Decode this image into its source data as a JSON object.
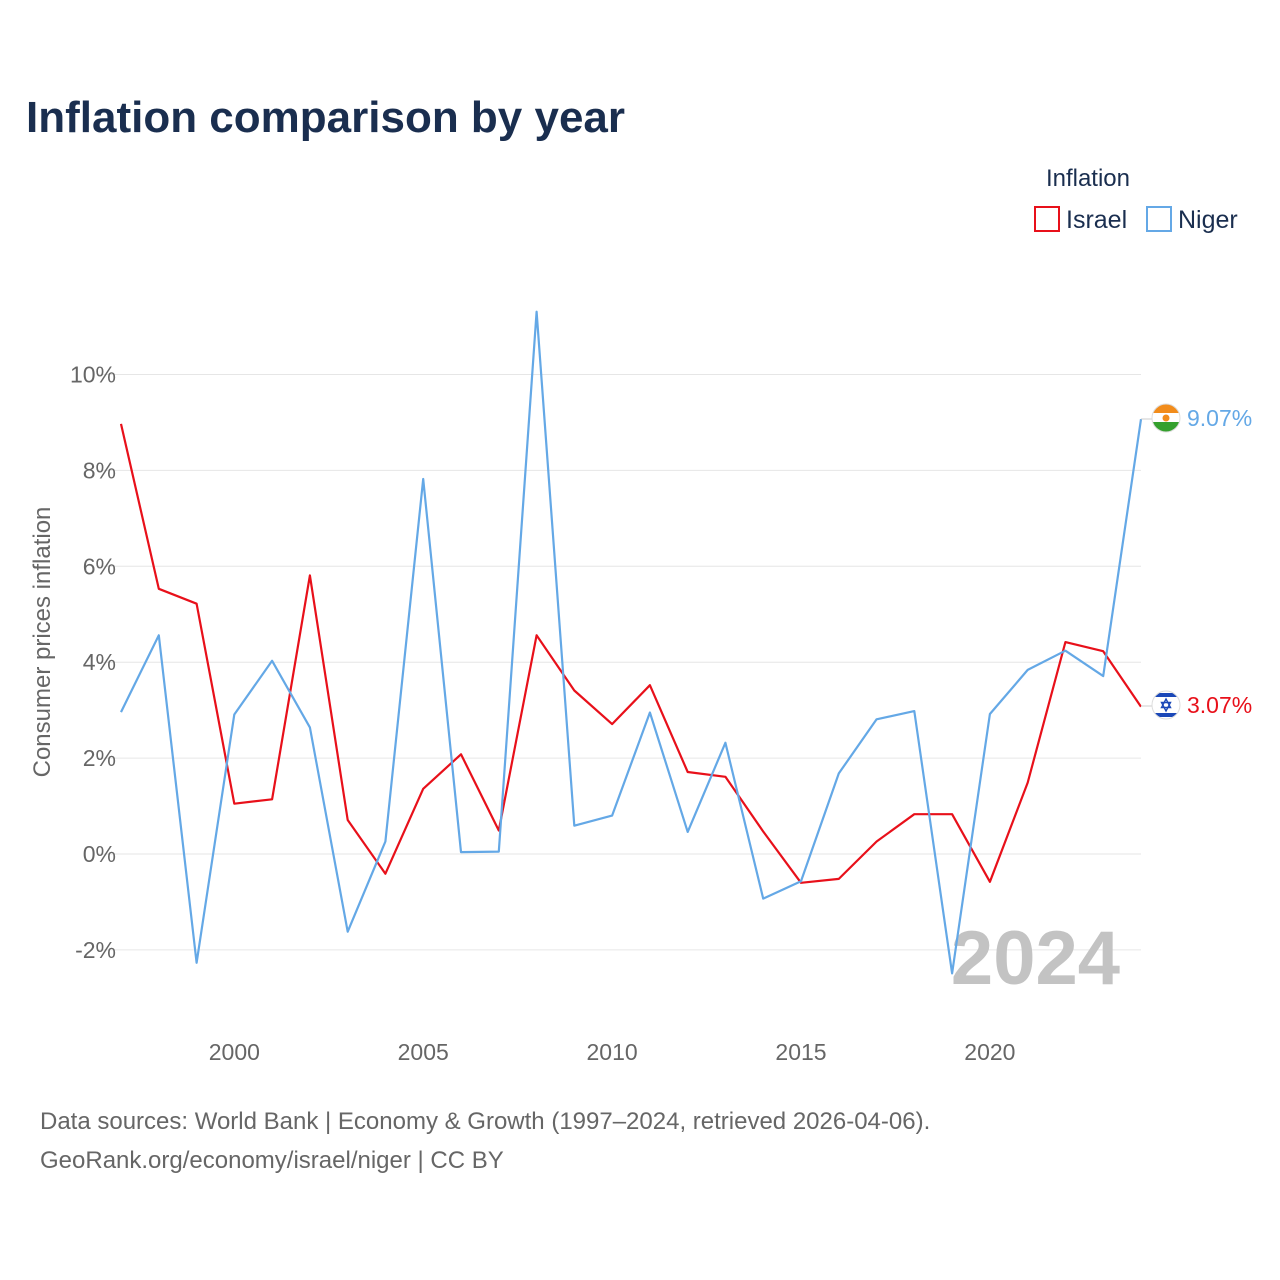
{
  "title": "Inflation comparison by year",
  "legend": {
    "title": "Inflation",
    "items": [
      {
        "label": "Israel",
        "color": "#e8101a"
      },
      {
        "label": "Niger",
        "color": "#64a8e6"
      }
    ]
  },
  "year_watermark": "2024",
  "footer": {
    "line1": "Data sources: World Bank | Economy & Growth (1997–2024, retrieved 2026-04-06).",
    "line2": "GeoRank.org/economy/israel/niger | CC BY"
  },
  "chart_data": {
    "type": "line",
    "title": "Inflation comparison by year",
    "xlabel": "",
    "ylabel": "Consumer prices inflation",
    "xlim": [
      1997,
      2024
    ],
    "ylim": [
      -3.2,
      11.5
    ],
    "x_ticks": [
      2000,
      2005,
      2010,
      2015,
      2020
    ],
    "y_ticks": [
      -2,
      0,
      2,
      4,
      6,
      8,
      10
    ],
    "y_tick_labels": [
      "-2%",
      "0%",
      "2%",
      "4%",
      "6%",
      "8%",
      "10%"
    ],
    "grid": true,
    "legend_position": "top-right",
    "x": [
      1997,
      1998,
      1999,
      2000,
      2001,
      2002,
      2003,
      2004,
      2005,
      2006,
      2007,
      2008,
      2009,
      2010,
      2011,
      2012,
      2013,
      2014,
      2015,
      2016,
      2017,
      2018,
      2019,
      2020,
      2021,
      2022,
      2023,
      2024
    ],
    "series": [
      {
        "name": "Israel",
        "color": "#e8101a",
        "end_label": "3.07%",
        "flag": "israel-flag-icon",
        "values": [
          8.97,
          5.53,
          5.22,
          1.05,
          1.14,
          5.81,
          0.71,
          -0.41,
          1.36,
          2.08,
          0.49,
          4.56,
          3.41,
          2.71,
          3.52,
          1.71,
          1.61,
          0.47,
          -0.6,
          -0.52,
          0.26,
          0.83,
          0.83,
          -0.58,
          1.49,
          4.42,
          4.23,
          3.07
        ]
      },
      {
        "name": "Niger",
        "color": "#64a8e6",
        "end_label": "9.07%",
        "flag": "niger-flag-icon",
        "values": [
          2.96,
          4.56,
          -2.27,
          2.91,
          4.03,
          2.64,
          -1.62,
          0.26,
          7.82,
          0.04,
          0.05,
          11.31,
          0.59,
          0.8,
          2.95,
          0.46,
          2.32,
          -0.93,
          -0.57,
          1.68,
          2.81,
          2.98,
          -2.49,
          2.92,
          3.84,
          4.24,
          3.71,
          9.07
        ]
      }
    ]
  }
}
